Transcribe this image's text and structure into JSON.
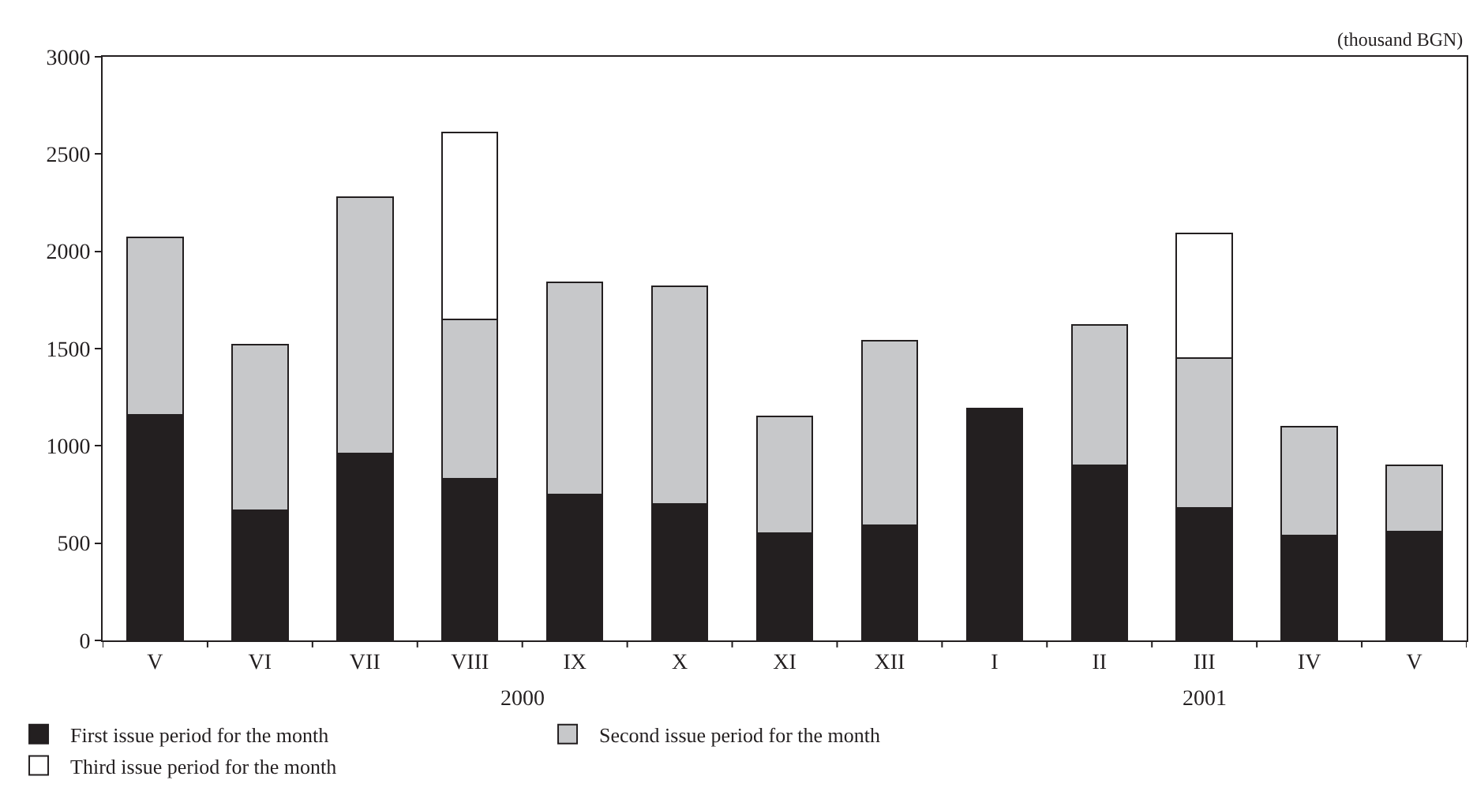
{
  "chart_data": {
    "type": "bar",
    "stacked": true,
    "ylabel": "(thousand BGN)",
    "categories": [
      "V",
      "VI",
      "VII",
      "VIII",
      "IX",
      "X",
      "XI",
      "XII",
      "I",
      "II",
      "III",
      "IV",
      "V"
    ],
    "series": [
      {
        "name": "First issue period for the month",
        "color": "#231f20",
        "values": [
          1160,
          670,
          960,
          830,
          750,
          700,
          550,
          590,
          1190,
          900,
          680,
          540,
          560
        ]
      },
      {
        "name": "Second issue period for the month",
        "color": "#c7c8ca",
        "values": [
          910,
          850,
          1320,
          820,
          1090,
          1120,
          600,
          950,
          null,
          720,
          770,
          560,
          340
        ]
      },
      {
        "name": "Third issue period for the month",
        "color": "#ffffff",
        "values": [
          null,
          null,
          null,
          960,
          null,
          null,
          null,
          null,
          null,
          null,
          640,
          null,
          null
        ]
      }
    ],
    "annotations": [
      "2000",
      "2001"
    ],
    "ylim": [
      0,
      3000
    ],
    "yticks": [
      0,
      500,
      1000,
      1500,
      2000,
      2500,
      3000
    ],
    "legend": "bottom"
  }
}
